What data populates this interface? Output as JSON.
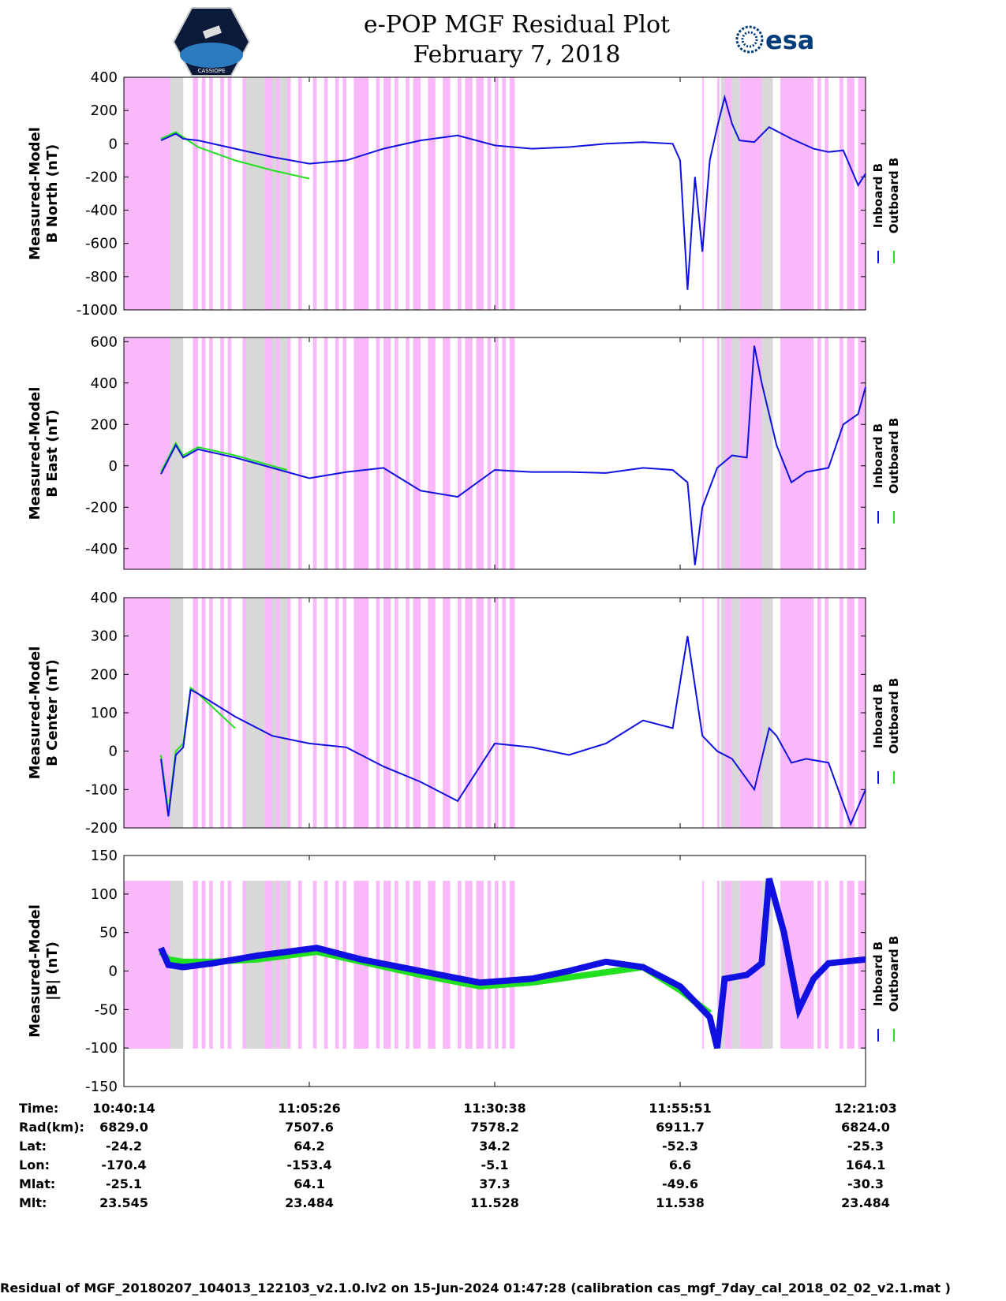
{
  "header": {
    "title_line1": "e-POP MGF Residual Plot",
    "title_line2": "February 7, 2018",
    "logo_left_text": "CASSIOPE",
    "logo_right_text": "esa"
  },
  "colors": {
    "inboard": "#1010e0",
    "outboard": "#20e020",
    "shade_pink": "#f9b8f9",
    "shade_gray": "#d8d8d8"
  },
  "chart_data": [
    {
      "type": "line",
      "ylabel_line1": "Measured-Model",
      "ylabel_line2": "B North (nT)",
      "ylim": [
        -1000,
        400
      ],
      "yticks": [
        400,
        200,
        0,
        -200,
        -400,
        -600,
        -800,
        -1000
      ],
      "legend": [
        "Inboard B",
        "Outboard B"
      ],
      "series": [
        {
          "name": "Inboard B",
          "x": [
            0.05,
            0.07,
            0.08,
            0.1,
            0.15,
            0.2,
            0.25,
            0.3,
            0.35,
            0.4,
            0.45,
            0.5,
            0.55,
            0.6,
            0.65,
            0.7,
            0.74,
            0.75,
            0.76,
            0.77,
            0.78,
            0.79,
            0.8,
            0.81,
            0.82,
            0.83,
            0.85,
            0.87,
            0.9,
            0.93,
            0.95,
            0.97,
            0.99,
            1.0
          ],
          "values": [
            20,
            60,
            30,
            20,
            -30,
            -80,
            -120,
            -100,
            -30,
            20,
            50,
            -10,
            -30,
            -20,
            0,
            10,
            0,
            -100,
            -880,
            -200,
            -650,
            -100,
            100,
            280,
            120,
            20,
            10,
            100,
            30,
            -30,
            -50,
            -40,
            -250,
            -180
          ]
        },
        {
          "name": "Outboard B",
          "x": [
            0.05,
            0.07,
            0.08,
            0.1,
            0.15,
            0.2,
            0.25
          ],
          "values": [
            30,
            70,
            40,
            -20,
            -100,
            -160,
            -210
          ]
        }
      ]
    },
    {
      "type": "line",
      "ylabel_line1": "Measured-Model",
      "ylabel_line2": "B East (nT)",
      "ylim": [
        -500,
        620
      ],
      "yticks": [
        600,
        400,
        200,
        0,
        -200,
        -400
      ],
      "legend": [
        "Inboard B",
        "Outboard B"
      ],
      "series": [
        {
          "name": "Inboard B",
          "x": [
            0.05,
            0.07,
            0.08,
            0.1,
            0.15,
            0.2,
            0.25,
            0.3,
            0.35,
            0.4,
            0.45,
            0.5,
            0.55,
            0.6,
            0.65,
            0.7,
            0.74,
            0.76,
            0.77,
            0.78,
            0.8,
            0.82,
            0.84,
            0.85,
            0.86,
            0.88,
            0.9,
            0.92,
            0.95,
            0.97,
            0.99,
            1.0
          ],
          "values": [
            -40,
            100,
            40,
            80,
            40,
            -10,
            -60,
            -30,
            -10,
            -120,
            -150,
            -20,
            -30,
            -30,
            -35,
            -10,
            -20,
            -80,
            -480,
            -200,
            -10,
            50,
            40,
            580,
            400,
            100,
            -80,
            -30,
            -10,
            200,
            250,
            380
          ]
        },
        {
          "name": "Outboard B",
          "x": [
            0.05,
            0.07,
            0.08,
            0.1,
            0.15,
            0.2,
            0.22
          ],
          "values": [
            -30,
            110,
            50,
            90,
            50,
            0,
            -20
          ]
        }
      ]
    },
    {
      "type": "line",
      "ylabel_line1": "Measured-Model",
      "ylabel_line2": "B Center (nT)",
      "ylim": [
        -200,
        400
      ],
      "yticks": [
        400,
        300,
        200,
        100,
        0,
        -100,
        -200
      ],
      "legend": [
        "Inboard B",
        "Outboard B"
      ],
      "series": [
        {
          "name": "Inboard B",
          "x": [
            0.05,
            0.06,
            0.07,
            0.08,
            0.09,
            0.1,
            0.15,
            0.2,
            0.25,
            0.3,
            0.35,
            0.4,
            0.45,
            0.5,
            0.55,
            0.6,
            0.65,
            0.7,
            0.74,
            0.76,
            0.78,
            0.8,
            0.82,
            0.85,
            0.87,
            0.88,
            0.9,
            0.92,
            0.95,
            0.98,
            1.0
          ],
          "values": [
            -20,
            -170,
            -10,
            10,
            160,
            150,
            90,
            40,
            20,
            10,
            -40,
            -80,
            -130,
            20,
            10,
            -10,
            20,
            80,
            60,
            300,
            40,
            0,
            -20,
            -100,
            60,
            40,
            -30,
            -20,
            -30,
            -190,
            -100
          ]
        },
        {
          "name": "Outboard B",
          "x": [
            0.05,
            0.06,
            0.07,
            0.08,
            0.09,
            0.1,
            0.15
          ],
          "values": [
            -10,
            -160,
            0,
            20,
            165,
            150,
            60
          ]
        }
      ]
    },
    {
      "type": "line",
      "ylabel_line1": "Measured-Model",
      "ylabel_line2": "|B| (nT)",
      "ylim": [
        -150,
        150
      ],
      "yticks": [
        150,
        100,
        50,
        0,
        -50,
        -100,
        -150
      ],
      "legend": [
        "Inboard B",
        "Outboard B"
      ],
      "series": [
        {
          "name": "Inboard B",
          "x": [
            0.05,
            0.06,
            0.08,
            0.12,
            0.18,
            0.26,
            0.32,
            0.4,
            0.48,
            0.55,
            0.6,
            0.65,
            0.7,
            0.75,
            0.79,
            0.8,
            0.81,
            0.84,
            0.86,
            0.87,
            0.89,
            0.91,
            0.93,
            0.95,
            1.0
          ],
          "values": [
            30,
            8,
            5,
            10,
            20,
            30,
            15,
            0,
            -15,
            -10,
            0,
            12,
            5,
            -20,
            -60,
            -100,
            -10,
            -5,
            10,
            120,
            50,
            -50,
            -10,
            10,
            15
          ]
        },
        {
          "name": "Outboard B",
          "x": [
            0.05,
            0.06,
            0.08,
            0.12,
            0.18,
            0.26,
            0.4,
            0.48,
            0.55,
            0.7,
            0.75,
            0.79
          ],
          "values": [
            25,
            15,
            12,
            12,
            15,
            25,
            -5,
            -20,
            -15,
            5,
            -25,
            -55
          ]
        }
      ]
    }
  ],
  "ephemeris": {
    "labels": [
      "Time:",
      "Rad(km):",
      "Lat:",
      "Lon:",
      "Mlat:",
      "Mlt:"
    ],
    "columns": [
      {
        "Time": "10:40:14",
        "Rad": "6829.0",
        "Lat": "-24.2",
        "Lon": "-170.4",
        "Mlat": "-25.1",
        "Mlt": "23.545"
      },
      {
        "Time": "11:05:26",
        "Rad": "7507.6",
        "Lat": "64.2",
        "Lon": "-153.4",
        "Mlat": "64.1",
        "Mlt": "23.484"
      },
      {
        "Time": "11:30:38",
        "Rad": "7578.2",
        "Lat": "34.2",
        "Lon": "-5.1",
        "Mlat": "37.3",
        "Mlt": "11.528"
      },
      {
        "Time": "11:55:51",
        "Rad": "6911.7",
        "Lat": "-52.3",
        "Lon": "6.6",
        "Mlat": "-49.6",
        "Mlt": "11.538"
      },
      {
        "Time": "12:21:03",
        "Rad": "6824.0",
        "Lat": "-25.3",
        "Lon": "164.1",
        "Mlat": "-30.3",
        "Mlt": "23.484"
      }
    ]
  },
  "footer": "Residual of MGF_20180207_104013_122103_v2.1.0.lv2 on 15-Jun-2024 01:47:28 (calibration cas_mgf_7day_cal_2018_02_02_v2.1.mat )"
}
